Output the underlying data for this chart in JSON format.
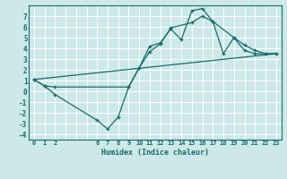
{
  "xlabel": "Humidex (Indice chaleur)",
  "bg_color": "#cce8e8",
  "line_color": "#1a6b6b",
  "grid_color": "#b0d8d8",
  "xlim": [
    -0.5,
    23.5
  ],
  "ylim": [
    -4.5,
    8.0
  ],
  "xtick_positions": [
    0,
    1,
    2,
    3,
    4,
    5,
    6,
    7,
    8,
    9,
    10,
    11,
    12,
    13,
    14,
    15,
    16,
    17,
    18,
    19,
    20,
    21,
    22,
    23
  ],
  "xtick_labels": [
    "0",
    "1",
    "2",
    "",
    "",
    "",
    "6",
    "7",
    "8",
    "9",
    "10",
    "11",
    "12",
    "13",
    "14",
    "15",
    "16",
    "17",
    "18",
    "19",
    "20",
    "21",
    "22",
    "23"
  ],
  "ytick_positions": [
    -4,
    -3,
    -2,
    -1,
    0,
    1,
    2,
    3,
    4,
    5,
    6,
    7
  ],
  "ytick_labels": [
    "-4",
    "-3",
    "-2",
    "-1",
    "0",
    "1",
    "2",
    "3",
    "4",
    "5",
    "6",
    "7"
  ],
  "line1_x": [
    0,
    1,
    2,
    6,
    7,
    8,
    9,
    10,
    11,
    12,
    13,
    14,
    15,
    16,
    17,
    18,
    19,
    20,
    21,
    22,
    23
  ],
  "line1_y": [
    1.1,
    0.5,
    -0.3,
    -2.7,
    -3.5,
    -2.4,
    0.4,
    2.2,
    4.2,
    4.5,
    5.8,
    4.8,
    7.5,
    7.7,
    6.5,
    3.5,
    5.0,
    3.8,
    3.5,
    3.5,
    3.5
  ],
  "line2_x": [
    0,
    1,
    2,
    9,
    10,
    11,
    12,
    13,
    15,
    16,
    17,
    19,
    20,
    21,
    22,
    23
  ],
  "line2_y": [
    1.1,
    0.5,
    0.4,
    0.4,
    2.2,
    3.7,
    4.4,
    5.9,
    6.4,
    7.0,
    6.5,
    5.0,
    4.3,
    3.8,
    3.5,
    3.5
  ],
  "line3_x": [
    0,
    23
  ],
  "line3_y": [
    1.1,
    3.5
  ]
}
